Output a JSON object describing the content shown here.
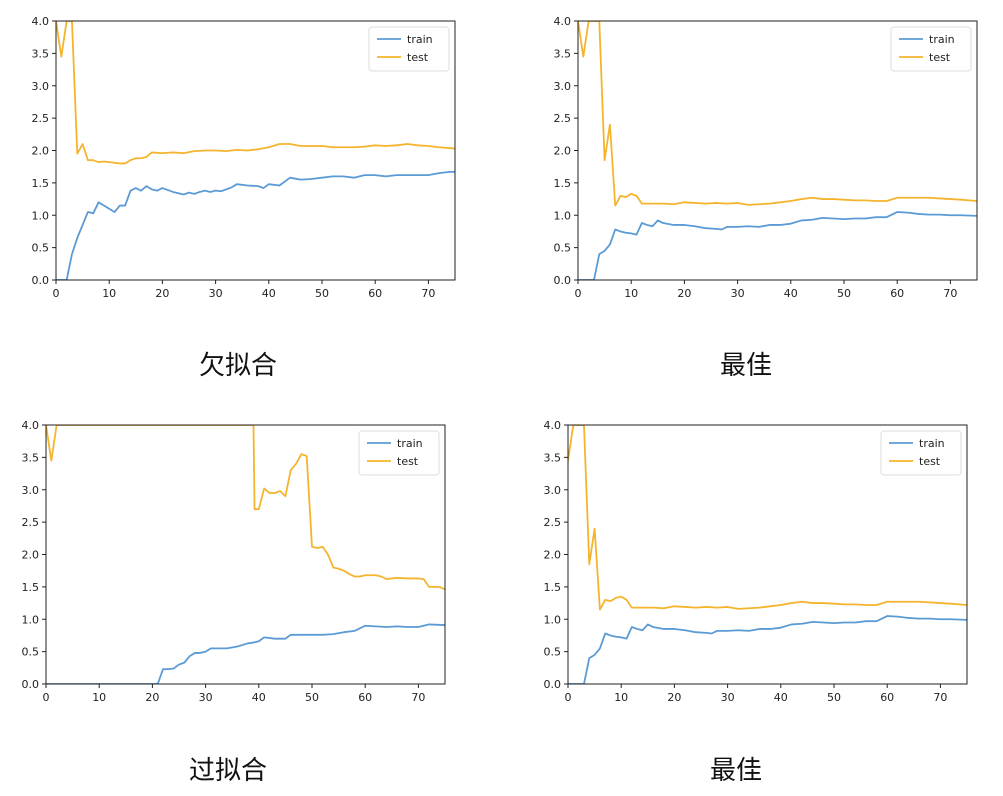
{
  "colors": {
    "train": "#5b9bd5",
    "test": "#f5b42d",
    "axis": "#222222"
  },
  "captions": [
    "欠拟合",
    "最佳",
    "过拟合",
    "最佳"
  ],
  "chart_data": [
    {
      "type": "line",
      "title": "",
      "xlabel": "",
      "ylabel": "",
      "xlim": [
        0,
        75
      ],
      "ylim": [
        0,
        4.0
      ],
      "xticks": [
        0,
        10,
        20,
        30,
        40,
        50,
        60,
        70
      ],
      "yticks": [
        0.0,
        0.5,
        1.0,
        1.5,
        2.0,
        2.5,
        3.0,
        3.5,
        4.0
      ],
      "ytick_labels": [
        "0.0",
        "0.5",
        "1.0",
        "1.5",
        "2.0",
        "2.5",
        "3.0",
        "3.5",
        "4.0"
      ],
      "legend": {
        "position": "top-right"
      },
      "series": [
        {
          "name": "train",
          "color": "#5b9bd5",
          "x": [
            0,
            2,
            3,
            4,
            5,
            6,
            7,
            8,
            9,
            10,
            11,
            12,
            13,
            14,
            15,
            16,
            17,
            18,
            19,
            20,
            22,
            24,
            25,
            26,
            27,
            28,
            29,
            30,
            31,
            32,
            33,
            34,
            36,
            38,
            39,
            40,
            42,
            44,
            46,
            48,
            50,
            52,
            54,
            56,
            58,
            60,
            62,
            64,
            66,
            68,
            70,
            72,
            73,
            74,
            75
          ],
          "y": [
            0,
            0,
            0.4,
            0.65,
            0.85,
            1.05,
            1.03,
            1.2,
            1.15,
            1.1,
            1.05,
            1.15,
            1.15,
            1.38,
            1.42,
            1.38,
            1.45,
            1.4,
            1.38,
            1.42,
            1.36,
            1.32,
            1.35,
            1.33,
            1.36,
            1.38,
            1.36,
            1.38,
            1.37,
            1.4,
            1.43,
            1.48,
            1.46,
            1.45,
            1.42,
            1.48,
            1.46,
            1.58,
            1.55,
            1.56,
            1.58,
            1.6,
            1.6,
            1.58,
            1.62,
            1.62,
            1.6,
            1.62,
            1.62,
            1.62,
            1.62,
            1.65,
            1.66,
            1.67,
            1.67
          ]
        },
        {
          "name": "test",
          "color": "#f5b42d",
          "x": [
            0,
            1,
            2,
            3,
            4,
            5,
            6,
            7,
            8,
            9,
            10,
            12,
            13,
            14,
            15,
            16,
            17,
            18,
            20,
            22,
            24,
            26,
            28,
            30,
            32,
            34,
            36,
            38,
            40,
            42,
            44,
            46,
            48,
            50,
            52,
            54,
            56,
            58,
            60,
            62,
            64,
            66,
            68,
            70,
            72,
            75
          ],
          "y": [
            4.0,
            3.45,
            4.0,
            4.0,
            1.95,
            2.1,
            1.85,
            1.85,
            1.82,
            1.83,
            1.82,
            1.8,
            1.8,
            1.85,
            1.88,
            1.88,
            1.9,
            1.97,
            1.96,
            1.97,
            1.96,
            1.99,
            2.0,
            2.0,
            1.99,
            2.01,
            2.0,
            2.02,
            2.05,
            2.1,
            2.1,
            2.07,
            2.07,
            2.07,
            2.05,
            2.05,
            2.05,
            2.06,
            2.08,
            2.07,
            2.08,
            2.1,
            2.08,
            2.07,
            2.05,
            2.03
          ]
        }
      ]
    },
    {
      "type": "line",
      "title": "",
      "xlabel": "",
      "ylabel": "",
      "xlim": [
        0,
        75
      ],
      "ylim": [
        0,
        4.0
      ],
      "xticks": [
        0,
        10,
        20,
        30,
        40,
        50,
        60,
        70
      ],
      "yticks": [
        0.0,
        0.5,
        1.0,
        1.5,
        2.0,
        2.5,
        3.0,
        3.5,
        4.0
      ],
      "ytick_labels": [
        "0.0",
        "0.5",
        "1.0",
        "1.5",
        "2.0",
        "2.5",
        "3.0",
        "3.5",
        "4.0"
      ],
      "legend": {
        "position": "top-right"
      },
      "series": [
        {
          "name": "train",
          "color": "#5b9bd5",
          "x": [
            0,
            3,
            4,
            5,
            6,
            7,
            8,
            9,
            10,
            11,
            12,
            13,
            14,
            15,
            16,
            18,
            20,
            22,
            24,
            26,
            27,
            28,
            30,
            32,
            34,
            36,
            38,
            40,
            42,
            44,
            46,
            48,
            50,
            52,
            54,
            56,
            58,
            60,
            62,
            64,
            66,
            68,
            70,
            72,
            75
          ],
          "y": [
            0,
            0,
            0.4,
            0.45,
            0.55,
            0.78,
            0.75,
            0.73,
            0.72,
            0.7,
            0.88,
            0.85,
            0.83,
            0.92,
            0.88,
            0.85,
            0.85,
            0.83,
            0.8,
            0.79,
            0.78,
            0.82,
            0.82,
            0.83,
            0.82,
            0.85,
            0.85,
            0.87,
            0.92,
            0.93,
            0.96,
            0.95,
            0.94,
            0.95,
            0.95,
            0.97,
            0.97,
            1.05,
            1.04,
            1.02,
            1.01,
            1.01,
            1.0,
            1.0,
            0.99
          ]
        },
        {
          "name": "test",
          "color": "#f5b42d",
          "x": [
            0,
            1,
            2,
            3,
            4,
            5,
            6,
            7,
            8,
            9,
            10,
            11,
            12,
            14,
            16,
            18,
            20,
            22,
            24,
            26,
            28,
            30,
            32,
            34,
            36,
            38,
            40,
            42,
            44,
            46,
            48,
            50,
            52,
            54,
            56,
            58,
            60,
            62,
            64,
            66,
            68,
            70,
            72,
            75
          ],
          "y": [
            4.0,
            3.45,
            4.0,
            4.0,
            4.0,
            1.85,
            2.4,
            1.15,
            1.3,
            1.28,
            1.33,
            1.3,
            1.18,
            1.18,
            1.18,
            1.17,
            1.2,
            1.19,
            1.18,
            1.19,
            1.18,
            1.19,
            1.16,
            1.17,
            1.18,
            1.2,
            1.22,
            1.25,
            1.27,
            1.25,
            1.25,
            1.24,
            1.23,
            1.23,
            1.22,
            1.22,
            1.27,
            1.27,
            1.27,
            1.27,
            1.26,
            1.25,
            1.24,
            1.22
          ]
        }
      ]
    },
    {
      "type": "line",
      "title": "",
      "xlabel": "",
      "ylabel": "",
      "xlim": [
        0,
        75
      ],
      "ylim": [
        0,
        4.0
      ],
      "xticks": [
        0,
        10,
        20,
        30,
        40,
        50,
        60,
        70
      ],
      "yticks": [
        0.0,
        0.5,
        1.0,
        1.5,
        2.0,
        2.5,
        3.0,
        3.5,
        4.0
      ],
      "ytick_labels": [
        "0.0",
        "0.5",
        "1.0",
        "1.5",
        "2.0",
        "2.5",
        "3.0",
        "3.5",
        "4.0"
      ],
      "legend": {
        "position": "top-right"
      },
      "series": [
        {
          "name": "train",
          "color": "#5b9bd5",
          "x": [
            0,
            20,
            21,
            22,
            23,
            24,
            25,
            26,
            27,
            28,
            29,
            30,
            31,
            32,
            34,
            36,
            38,
            39,
            40,
            41,
            43,
            45,
            46,
            48,
            50,
            52,
            54,
            56,
            58,
            60,
            62,
            64,
            66,
            68,
            70,
            72,
            75
          ],
          "y": [
            0,
            0,
            0,
            0.23,
            0.23,
            0.24,
            0.3,
            0.33,
            0.43,
            0.48,
            0.48,
            0.5,
            0.55,
            0.55,
            0.55,
            0.58,
            0.63,
            0.64,
            0.66,
            0.72,
            0.7,
            0.7,
            0.76,
            0.76,
            0.76,
            0.76,
            0.77,
            0.8,
            0.82,
            0.9,
            0.89,
            0.88,
            0.89,
            0.88,
            0.88,
            0.92,
            0.91
          ]
        },
        {
          "name": "test",
          "color": "#f5b42d",
          "x": [
            0,
            1,
            2,
            39,
            39.2,
            40,
            41,
            42,
            43,
            44,
            45,
            46,
            47,
            48,
            49,
            50,
            51,
            52,
            53,
            54,
            55,
            56,
            57,
            58,
            59,
            60,
            61,
            62,
            63,
            64,
            66,
            68,
            70,
            71,
            72,
            73,
            74,
            75
          ],
          "y": [
            4.0,
            3.45,
            4.0,
            4.0,
            2.7,
            2.7,
            3.02,
            2.95,
            2.95,
            2.98,
            2.9,
            3.3,
            3.4,
            3.55,
            3.52,
            2.12,
            2.1,
            2.12,
            2.0,
            1.8,
            1.78,
            1.75,
            1.7,
            1.66,
            1.66,
            1.68,
            1.68,
            1.68,
            1.66,
            1.62,
            1.64,
            1.63,
            1.63,
            1.62,
            1.5,
            1.5,
            1.5,
            1.46
          ]
        }
      ]
    },
    {
      "type": "line",
      "title": "",
      "xlabel": "",
      "ylabel": "",
      "xlim": [
        0,
        75
      ],
      "ylim": [
        0,
        4.0
      ],
      "xticks": [
        0,
        10,
        20,
        30,
        40,
        50,
        60,
        70
      ],
      "yticks": [
        0.0,
        0.5,
        1.0,
        1.5,
        2.0,
        2.5,
        3.0,
        3.5,
        4.0
      ],
      "ytick_labels": [
        "0.0",
        "0.5",
        "1.0",
        "1.5",
        "2.0",
        "2.5",
        "3.0",
        "3.5",
        "4.0"
      ],
      "legend": {
        "position": "top-right"
      },
      "series": [
        {
          "name": "train",
          "color": "#5b9bd5",
          "x": [
            0,
            3,
            4,
            5,
            6,
            7,
            8,
            9,
            10,
            11,
            12,
            13,
            14,
            15,
            16,
            18,
            20,
            22,
            24,
            26,
            27,
            28,
            30,
            32,
            34,
            36,
            38,
            40,
            42,
            44,
            46,
            48,
            50,
            52,
            54,
            56,
            58,
            60,
            62,
            64,
            66,
            68,
            70,
            72,
            75
          ],
          "y": [
            0,
            0,
            0.4,
            0.45,
            0.55,
            0.78,
            0.75,
            0.73,
            0.72,
            0.7,
            0.88,
            0.85,
            0.83,
            0.92,
            0.88,
            0.85,
            0.85,
            0.83,
            0.8,
            0.79,
            0.78,
            0.82,
            0.82,
            0.83,
            0.82,
            0.85,
            0.85,
            0.87,
            0.92,
            0.93,
            0.96,
            0.95,
            0.94,
            0.95,
            0.95,
            0.97,
            0.97,
            1.05,
            1.04,
            1.02,
            1.01,
            1.01,
            1.0,
            1.0,
            0.99
          ]
        },
        {
          "name": "test",
          "color": "#f5b42d",
          "x": [
            0,
            1,
            2,
            3,
            4,
            5,
            6,
            7,
            8,
            9,
            10,
            11,
            12,
            14,
            16,
            18,
            20,
            22,
            24,
            26,
            28,
            30,
            32,
            34,
            36,
            38,
            40,
            42,
            44,
            46,
            48,
            50,
            52,
            54,
            56,
            58,
            60,
            62,
            64,
            66,
            68,
            70,
            72,
            75
          ],
          "y": [
            3.45,
            4.0,
            4.0,
            4.0,
            1.85,
            2.4,
            1.15,
            1.3,
            1.28,
            1.33,
            1.35,
            1.3,
            1.18,
            1.18,
            1.18,
            1.17,
            1.2,
            1.19,
            1.18,
            1.19,
            1.18,
            1.19,
            1.16,
            1.17,
            1.18,
            1.2,
            1.22,
            1.25,
            1.27,
            1.25,
            1.25,
            1.24,
            1.23,
            1.23,
            1.22,
            1.22,
            1.27,
            1.27,
            1.27,
            1.27,
            1.26,
            1.25,
            1.24,
            1.22
          ]
        }
      ]
    }
  ]
}
